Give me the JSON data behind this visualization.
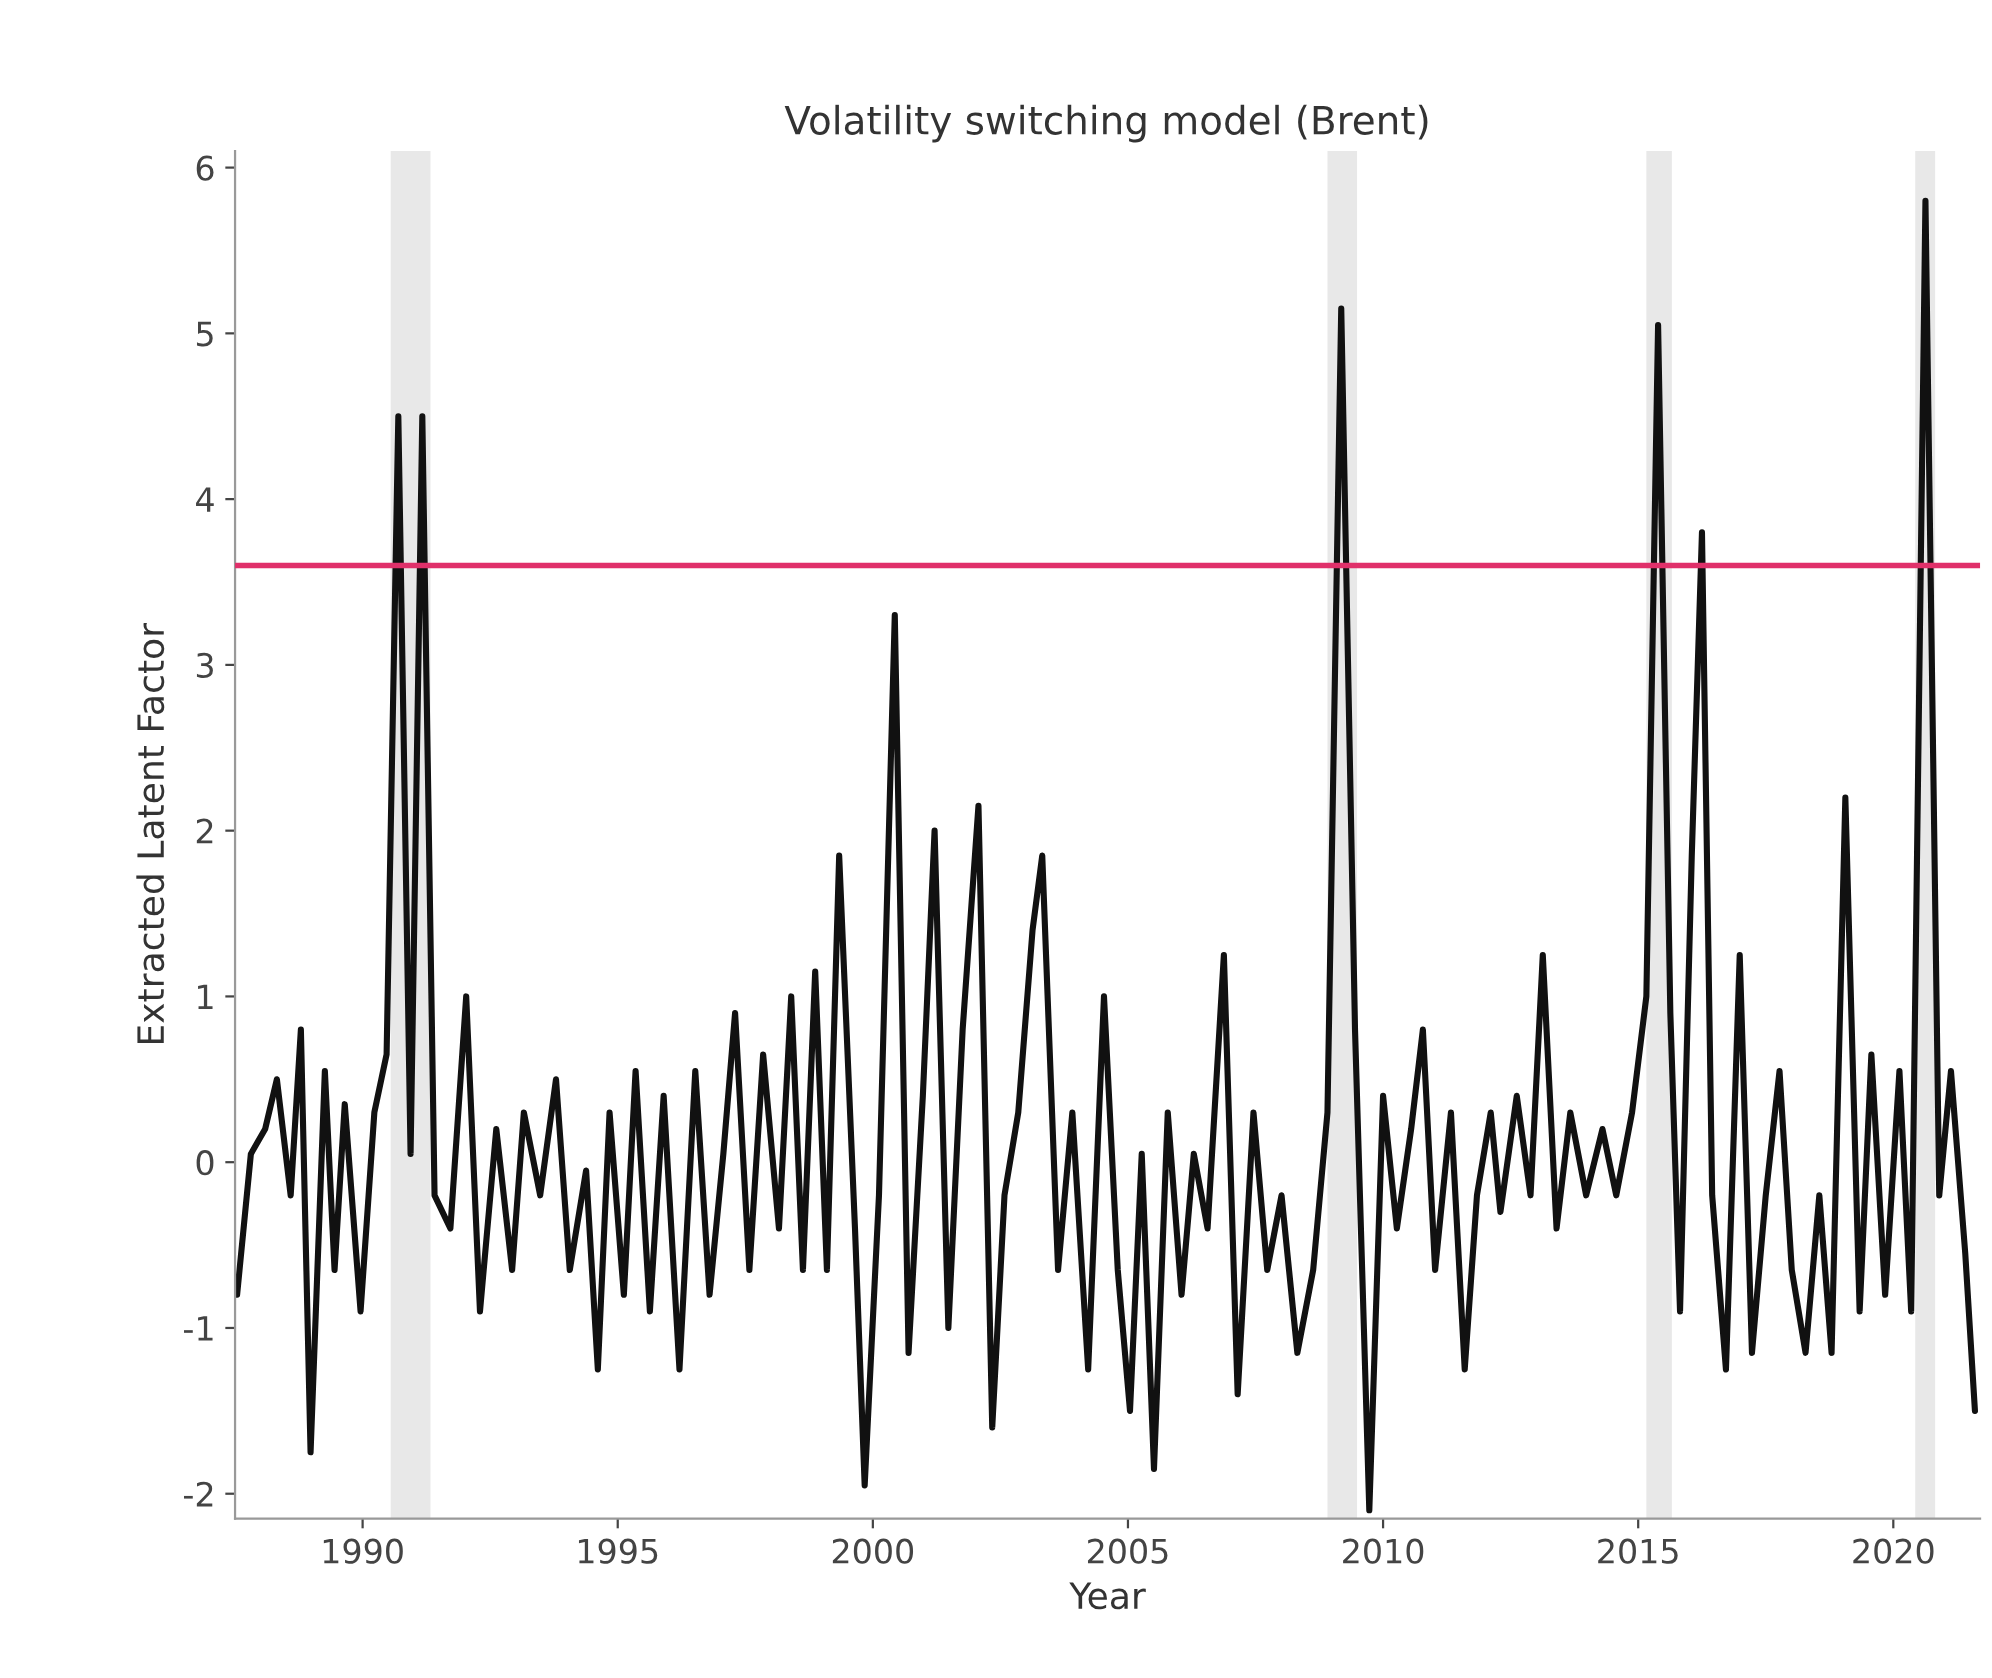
{
  "chart_data": {
    "type": "line",
    "title": "Volatility switching model (Brent)",
    "xlabel": "Year",
    "ylabel": "Extracted Latent Factor",
    "x": [
      1987.54,
      1987.81,
      1988.09,
      1988.32,
      1988.59,
      1988.79,
      1988.98,
      1989.26,
      1989.45,
      1989.65,
      1989.96,
      1990.23,
      1990.47,
      1990.7,
      1990.94,
      1991.17,
      1991.41,
      1991.72,
      1992.03,
      1992.3,
      1992.62,
      1992.93,
      1993.16,
      1993.48,
      1993.79,
      1994.06,
      1994.38,
      1994.61,
      1994.84,
      1995.12,
      1995.35,
      1995.63,
      1995.9,
      1996.21,
      1996.52,
      1996.8,
      1997.07,
      1997.3,
      1997.58,
      1997.85,
      1998.16,
      1998.4,
      1998.63,
      1998.87,
      1999.1,
      1999.34,
      1999.65,
      1999.84,
      2000.12,
      2000.43,
      2000.7,
      2000.98,
      2001.21,
      2001.48,
      2001.76,
      2002.07,
      2002.34,
      2002.58,
      2002.85,
      2003.13,
      2003.32,
      2003.63,
      2003.91,
      2004.22,
      2004.53,
      2004.8,
      2005.04,
      2005.27,
      2005.51,
      2005.78,
      2006.05,
      2006.29,
      2006.56,
      2006.88,
      2007.15,
      2007.46,
      2007.73,
      2008.01,
      2008.32,
      2008.63,
      2008.91,
      2009.18,
      2009.45,
      2009.73,
      2010.0,
      2010.27,
      2010.55,
      2010.78,
      2011.02,
      2011.33,
      2011.6,
      2011.84,
      2012.11,
      2012.3,
      2012.62,
      2012.89,
      2013.13,
      2013.4,
      2013.67,
      2013.98,
      2014.3,
      2014.57,
      2014.88,
      2015.16,
      2015.39,
      2015.63,
      2015.82,
      2016.05,
      2016.25,
      2016.45,
      2016.72,
      2016.99,
      2017.23,
      2017.5,
      2017.77,
      2018.01,
      2018.28,
      2018.55,
      2018.79,
      2019.06,
      2019.34,
      2019.57,
      2019.84,
      2020.12,
      2020.35,
      2020.63,
      2020.9,
      2021.13,
      2021.41,
      2021.6
    ],
    "series": [
      {
        "color": "#111111",
        "values": [
          -0.8,
          0.05,
          0.2,
          0.5,
          -0.2,
          0.8,
          -1.75,
          0.55,
          -0.65,
          0.35,
          -0.9,
          0.3,
          0.65,
          4.5,
          0.05,
          4.5,
          -0.2,
          -0.4,
          1.0,
          -0.9,
          0.2,
          -0.65,
          0.3,
          -0.2,
          0.5,
          -0.65,
          -0.05,
          -1.25,
          0.3,
          -0.8,
          0.55,
          -0.9,
          0.4,
          -1.25,
          0.55,
          -0.8,
          0.05,
          0.9,
          -0.65,
          0.65,
          -0.4,
          1.0,
          -0.65,
          1.15,
          -0.65,
          1.85,
          -0.4,
          -1.95,
          -0.2,
          3.3,
          -1.15,
          0.4,
          2.0,
          -1.0,
          0.8,
          2.15,
          -1.6,
          -0.2,
          0.3,
          1.4,
          1.85,
          -0.65,
          0.3,
          -1.25,
          1.0,
          -0.65,
          -1.5,
          0.05,
          -1.85,
          0.3,
          -0.8,
          0.05,
          -0.4,
          1.25,
          -1.4,
          0.3,
          -0.65,
          -0.2,
          -1.15,
          -0.65,
          0.3,
          5.15,
          0.8,
          -2.1,
          0.4,
          -0.4,
          0.2,
          0.8,
          -0.65,
          0.3,
          -1.25,
          -0.2,
          0.3,
          -0.3,
          0.4,
          -0.2,
          1.25,
          -0.4,
          0.3,
          -0.2,
          0.2,
          -0.2,
          0.3,
          1.0,
          5.05,
          0.9,
          -0.9,
          1.85,
          3.8,
          -0.2,
          -1.25,
          1.25,
          -1.15,
          -0.2,
          0.55,
          -0.65,
          -1.15,
          -0.2,
          -1.15,
          2.2,
          -0.9,
          0.65,
          -0.8,
          0.55,
          -0.9,
          5.8,
          -0.2,
          0.55,
          -0.55,
          -1.5
        ]
      }
    ],
    "xlim": [
      1987.5,
      2021.7
    ],
    "xticks": [
      1990,
      1995,
      2000,
      2005,
      2010,
      2015,
      2020
    ],
    "ylim": [
      -2.15,
      6.1
    ],
    "yticks": [
      -2,
      -1,
      0,
      1,
      2,
      3,
      4,
      5,
      6
    ],
    "ref_lines": [
      {
        "axis": "y",
        "value": 3.6,
        "color": "#e0306a"
      }
    ],
    "bands": [
      {
        "axis": "x",
        "from": 1990.55,
        "to": 1991.33,
        "color": "#e8e8e8"
      },
      {
        "axis": "x",
        "from": 2008.91,
        "to": 2009.49,
        "color": "#e8e8e8"
      },
      {
        "axis": "x",
        "from": 2015.16,
        "to": 2015.66,
        "color": "#e8e8e8"
      },
      {
        "axis": "x",
        "from": 2020.43,
        "to": 2020.82,
        "color": "#e8e8e8"
      }
    ],
    "grid": false,
    "marker": "none",
    "line_style": "solid"
  }
}
